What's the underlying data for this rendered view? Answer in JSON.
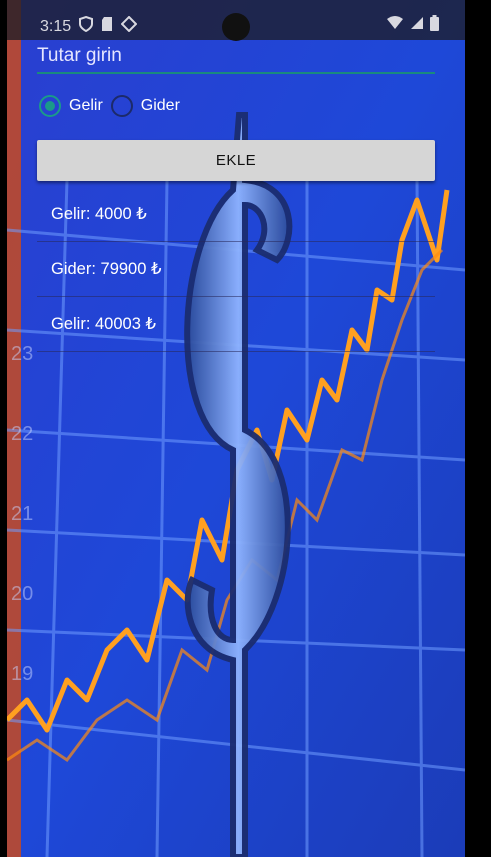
{
  "status_bar": {
    "time": "3:15",
    "left_icons": [
      "shield-icon",
      "sd-card-icon",
      "signal-diamond-icon"
    ],
    "right_icons": [
      "wifi-icon",
      "cellular-icon",
      "battery-icon"
    ]
  },
  "form": {
    "amount_placeholder": "Tutar girin",
    "radio_options": [
      {
        "label": "Gelir",
        "selected": true
      },
      {
        "label": "Gider",
        "selected": false
      }
    ],
    "add_button_label": "EKLE"
  },
  "entries": [
    {
      "text": "Gelir: 4000 ₺"
    },
    {
      "text": "Gider: 79900 ₺"
    },
    {
      "text": "Gelir: 40003 ₺"
    }
  ],
  "colors": {
    "accent": "#1a9a8a",
    "background_blue": "#1f3fc8",
    "chart_orange": "#ffa020"
  }
}
